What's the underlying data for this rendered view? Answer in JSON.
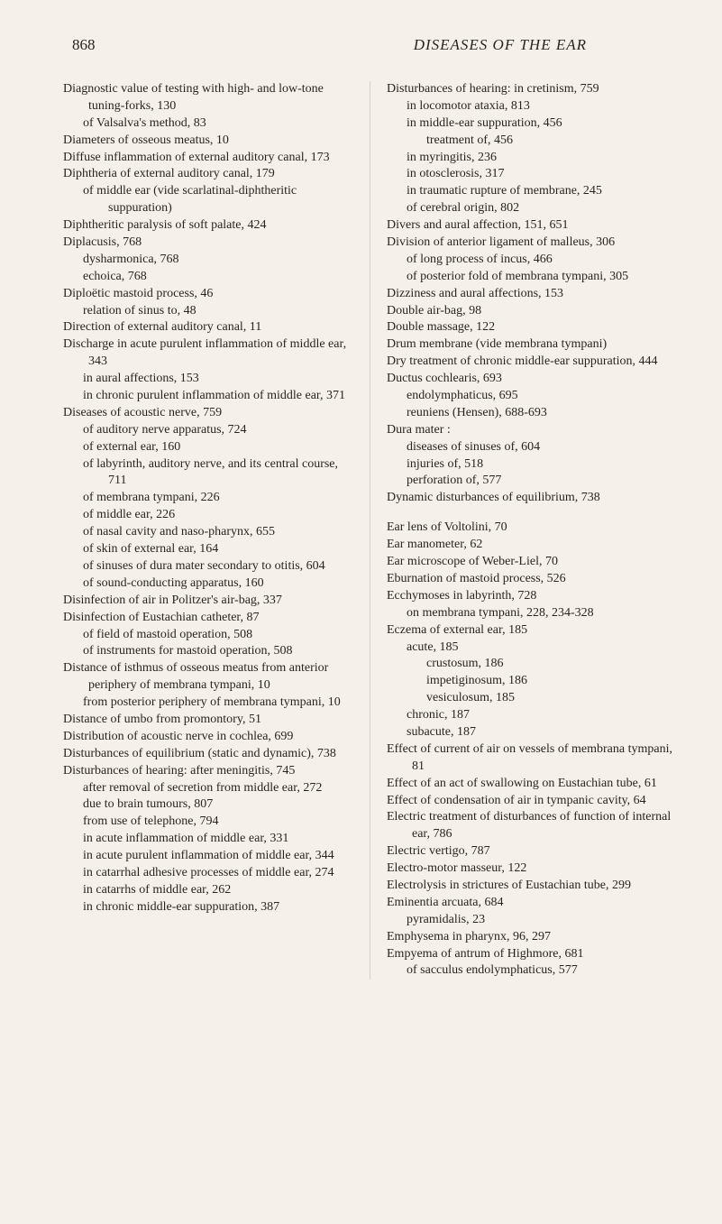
{
  "page_number": "868",
  "page_title": "DISEASES OF THE EAR",
  "left_column": [
    {
      "cls": "entry",
      "t": "Diagnostic value of testing with high- and low-tone tuning-forks, 130"
    },
    {
      "cls": "sub1",
      "t": "of Valsalva's method, 83"
    },
    {
      "cls": "entry",
      "t": "Diameters of osseous meatus, 10"
    },
    {
      "cls": "entry",
      "t": "Diffuse inflammation of external auditory canal, 173"
    },
    {
      "cls": "entry",
      "t": "Diphtheria of external auditory canal, 179"
    },
    {
      "cls": "sub1",
      "t": "of middle ear (vide scarlatinal-diphtheritic suppuration)"
    },
    {
      "cls": "entry",
      "t": "Diphtheritic paralysis of soft palate, 424"
    },
    {
      "cls": "entry",
      "t": "Diplacusis, 768"
    },
    {
      "cls": "sub1",
      "t": "dysharmonica, 768"
    },
    {
      "cls": "sub1",
      "t": "echoica, 768"
    },
    {
      "cls": "entry",
      "t": "Diploëtic mastoid process, 46"
    },
    {
      "cls": "sub1",
      "t": "relation of sinus to, 48"
    },
    {
      "cls": "entry",
      "t": "Direction of external auditory canal, 11"
    },
    {
      "cls": "entry",
      "t": "Discharge in acute purulent inflammation of middle ear, 343"
    },
    {
      "cls": "sub1",
      "t": "in aural affections, 153"
    },
    {
      "cls": "sub1",
      "t": "in chronic purulent inflammation of middle ear, 371"
    },
    {
      "cls": "entry",
      "t": "Diseases of acoustic nerve, 759"
    },
    {
      "cls": "sub1",
      "t": "of auditory nerve apparatus, 724"
    },
    {
      "cls": "sub1",
      "t": "of external ear, 160"
    },
    {
      "cls": "sub1",
      "t": "of labyrinth, auditory nerve, and its central course, 711"
    },
    {
      "cls": "sub1",
      "t": "of membrana tympani, 226"
    },
    {
      "cls": "sub1",
      "t": "of middle ear, 226"
    },
    {
      "cls": "sub1",
      "t": "of nasal cavity and naso-pharynx, 655"
    },
    {
      "cls": "sub1",
      "t": "of skin of external ear, 164"
    },
    {
      "cls": "sub1",
      "t": "of sinuses of dura mater secondary to otitis, 604"
    },
    {
      "cls": "sub1",
      "t": "of sound-conducting apparatus, 160"
    },
    {
      "cls": "entry",
      "t": "Disinfection of air in Politzer's air-bag, 337"
    },
    {
      "cls": "entry",
      "t": "Disinfection of Eustachian catheter, 87"
    },
    {
      "cls": "sub1",
      "t": "of field of mastoid operation, 508"
    },
    {
      "cls": "sub1",
      "t": "of instruments for mastoid operation, 508"
    },
    {
      "cls": "entry",
      "t": "Distance of isthmus of osseous meatus from anterior periphery of membrana tympani, 10"
    },
    {
      "cls": "sub1",
      "t": "from posterior periphery of membrana tympani, 10"
    },
    {
      "cls": "entry",
      "t": "Distance of umbo from promontory, 51"
    },
    {
      "cls": "entry",
      "t": "Distribution of acoustic nerve in cochlea, 699"
    },
    {
      "cls": "entry",
      "t": "Disturbances of equilibrium (static and dynamic), 738"
    },
    {
      "cls": "entry",
      "t": "Disturbances of hearing: after meningitis, 745"
    },
    {
      "cls": "sub1",
      "t": "after removal of secretion from middle ear, 272"
    },
    {
      "cls": "sub1",
      "t": "due to brain tumours, 807"
    },
    {
      "cls": "sub1",
      "t": "from use of telephone, 794"
    },
    {
      "cls": "sub1",
      "t": "in acute inflammation of middle ear, 331"
    },
    {
      "cls": "sub1",
      "t": "in acute purulent inflammation of middle ear, 344"
    },
    {
      "cls": "sub1",
      "t": "in catarrhal adhesive processes of middle ear, 274"
    },
    {
      "cls": "sub1",
      "t": "in catarrhs of middle ear, 262"
    },
    {
      "cls": "sub1",
      "t": "in chronic middle-ear suppuration, 387"
    }
  ],
  "right_column": [
    {
      "cls": "entry",
      "t": "Disturbances of hearing: in cretinism, 759"
    },
    {
      "cls": "sub1",
      "t": "in locomotor ataxia, 813"
    },
    {
      "cls": "sub1",
      "t": "in middle-ear suppuration, 456"
    },
    {
      "cls": "sub2",
      "t": "treatment of, 456"
    },
    {
      "cls": "sub1",
      "t": "in myringitis, 236"
    },
    {
      "cls": "sub1",
      "t": "in otosclerosis, 317"
    },
    {
      "cls": "sub1",
      "t": "in traumatic rupture of membrane, 245"
    },
    {
      "cls": "sub1",
      "t": "of cerebral origin, 802"
    },
    {
      "cls": "entry",
      "t": "Divers and aural affection, 151, 651"
    },
    {
      "cls": "entry",
      "t": "Division of anterior ligament of malleus, 306"
    },
    {
      "cls": "sub1",
      "t": "of long process of incus, 466"
    },
    {
      "cls": "sub1",
      "t": "of posterior fold of membrana tympani, 305"
    },
    {
      "cls": "entry",
      "t": "Dizziness and aural affections, 153"
    },
    {
      "cls": "entry",
      "t": "Double air-bag, 98"
    },
    {
      "cls": "entry",
      "t": "Double massage, 122"
    },
    {
      "cls": "entry",
      "t": "Drum membrane (vide membrana tympani)"
    },
    {
      "cls": "entry",
      "t": "Dry treatment of chronic middle-ear suppuration, 444"
    },
    {
      "cls": "entry",
      "t": "Ductus cochlearis, 693"
    },
    {
      "cls": "sub1",
      "t": "endolymphaticus, 695"
    },
    {
      "cls": "sub1",
      "t": "reuniens (Hensen), 688-693"
    },
    {
      "cls": "entry",
      "t": "Dura mater :"
    },
    {
      "cls": "sub1",
      "t": "diseases of sinuses of, 604"
    },
    {
      "cls": "sub1",
      "t": "injuries of, 518"
    },
    {
      "cls": "sub1",
      "t": "perforation of, 577"
    },
    {
      "cls": "entry",
      "t": "Dynamic disturbances of equilibrium, 738"
    },
    {
      "cls": "gap",
      "t": ""
    },
    {
      "cls": "entry",
      "t": "Ear lens of Voltolini, 70"
    },
    {
      "cls": "entry",
      "t": "Ear manometer, 62"
    },
    {
      "cls": "entry",
      "t": "Ear microscope of Weber-Liel, 70"
    },
    {
      "cls": "entry",
      "t": "Eburnation of mastoid process, 526"
    },
    {
      "cls": "entry",
      "t": "Ecchymoses in labyrinth, 728"
    },
    {
      "cls": "sub1",
      "t": "on membrana tympani, 228, 234-328"
    },
    {
      "cls": "entry",
      "t": "Eczema of external ear, 185"
    },
    {
      "cls": "sub1",
      "t": "acute, 185"
    },
    {
      "cls": "sub2",
      "t": "crustosum, 186"
    },
    {
      "cls": "sub2",
      "t": "impetiginosum, 186"
    },
    {
      "cls": "sub2",
      "t": "vesiculosum, 185"
    },
    {
      "cls": "sub1",
      "t": "chronic, 187"
    },
    {
      "cls": "sub1",
      "t": "subacute, 187"
    },
    {
      "cls": "entry",
      "t": "Effect of current of air on vessels of membrana tympani, 81"
    },
    {
      "cls": "entry",
      "t": "Effect of an act of swallowing on Eustachian tube, 61"
    },
    {
      "cls": "entry",
      "t": "Effect of condensation of air in tympanic cavity, 64"
    },
    {
      "cls": "entry",
      "t": "Electric treatment of disturbances of function of internal ear, 786"
    },
    {
      "cls": "entry",
      "t": "Electric vertigo, 787"
    },
    {
      "cls": "entry",
      "t": "Electro-motor masseur, 122"
    },
    {
      "cls": "entry",
      "t": "Electrolysis in strictures of Eustachian tube, 299"
    },
    {
      "cls": "entry",
      "t": "Eminentia arcuata, 684"
    },
    {
      "cls": "sub1",
      "t": "pyramidalis, 23"
    },
    {
      "cls": "entry",
      "t": "Emphysema in pharynx, 96, 297"
    },
    {
      "cls": "entry",
      "t": "Empyema of antrum of Highmore, 681"
    },
    {
      "cls": "sub1",
      "t": "of sacculus endolymphaticus, 577"
    }
  ]
}
